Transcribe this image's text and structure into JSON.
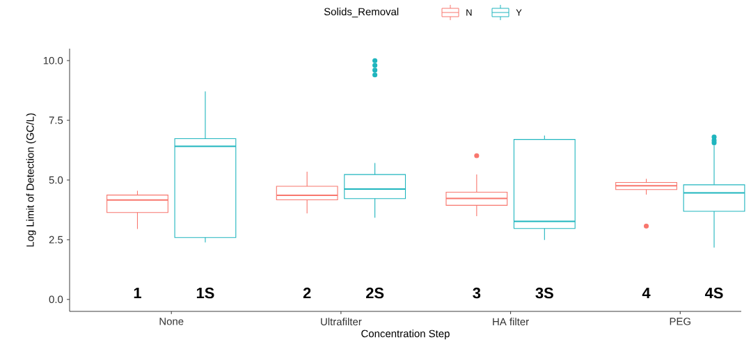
{
  "chart_data": {
    "type": "box",
    "xlabel": "Concentration Step",
    "ylabel": "Log Limit of Detection (GC/L)",
    "legend_title": "Solids_Removal",
    "legend": "top",
    "categories": [
      "None",
      "Ultrafilter",
      "HA filter",
      "PEG"
    ],
    "ylim": [
      -0.5,
      10.5
    ],
    "yticks": [
      {
        "value": 0,
        "label": "0.0"
      },
      2.5,
      {
        "value": 5,
        "label": "5.0"
      },
      7.5,
      {
        "value": 10,
        "label": "10.0"
      }
    ],
    "series": [
      {
        "name": "N",
        "color": "#f8766d",
        "boxes": [
          {
            "low": 2.95,
            "q1": 3.64,
            "median": 4.16,
            "q3": 4.37,
            "high": 4.55
          },
          {
            "low": 3.6,
            "q1": 4.17,
            "median": 4.36,
            "q3": 4.74,
            "high": 5.35
          },
          {
            "low": 3.49,
            "q1": 3.94,
            "median": 4.23,
            "q3": 4.49,
            "high": 5.23,
            "outliers": [
              6.02
            ]
          },
          {
            "low": 4.39,
            "q1": 4.6,
            "median": 4.76,
            "q3": 4.9,
            "high": 5.05,
            "outliers": [
              3.07
            ]
          }
        ]
      },
      {
        "name": "Y",
        "color": "#1fb5be",
        "boxes": [
          {
            "low": 2.39,
            "q1": 2.59,
            "median": 6.41,
            "q3": 6.73,
            "high": 8.71
          },
          {
            "low": 3.42,
            "q1": 4.22,
            "median": 4.62,
            "q3": 5.23,
            "high": 5.71,
            "outliers": [
              9.4,
              9.6,
              9.8,
              10.0
            ]
          },
          {
            "low": 2.49,
            "q1": 2.97,
            "median": 3.27,
            "q3": 6.7,
            "high": 6.86
          },
          {
            "low": 2.17,
            "q1": 3.69,
            "median": 4.46,
            "q3": 4.8,
            "high": 6.45,
            "outliers": [
              6.56,
              6.66,
              6.8
            ]
          }
        ]
      }
    ],
    "annotations": [
      "1",
      "1S",
      "2",
      "2S",
      "3",
      "3S",
      "4",
      "4S"
    ]
  }
}
